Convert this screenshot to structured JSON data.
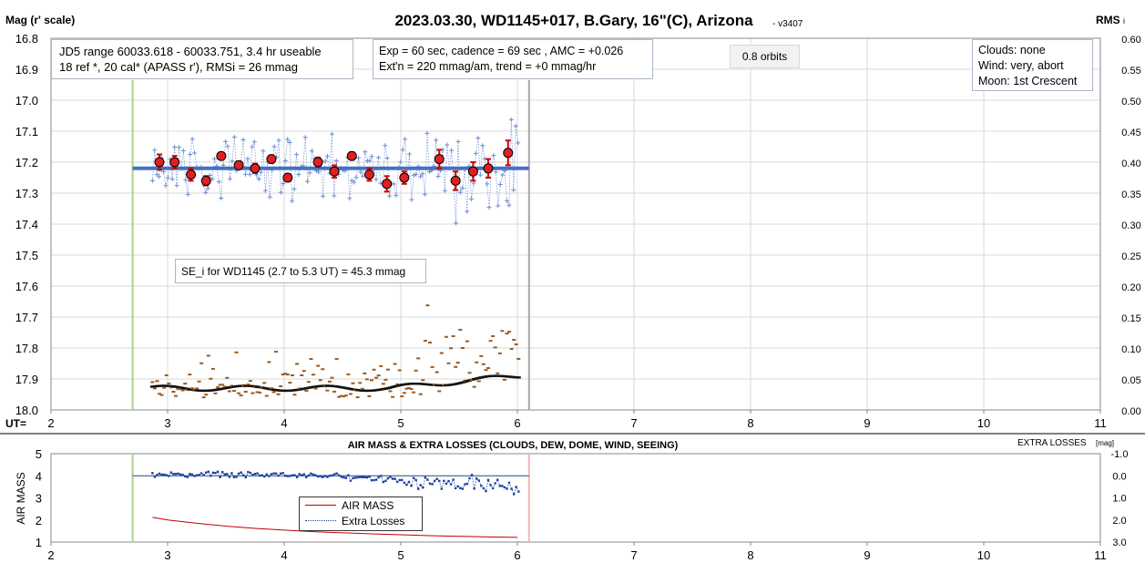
{
  "title": "2023.03.30, WD1145+017, B.Gary, 16\"(C), Arizona",
  "version": "- v3407",
  "ylabel_left": "Mag (r' scale)",
  "ylabel_right": "RMS",
  "ylabel_right_sub": "i",
  "ut_label": "UT=",
  "info_box_1": {
    "line1": "JD5 range 60033.618 - 60033.751, 3.4 hr useable",
    "line2": "18 ref *, 20 cal*  (APASS r'), RMSi = 26 mmag"
  },
  "info_box_2": {
    "line1": "Exp = 60 sec, cadence = 69 sec , AMC = +0.026",
    "line2": "Ext'n = 220 mmag/am, trend = +0 mmag/hr"
  },
  "orbits_label": "0.8 orbits",
  "conditions_box": {
    "line1": "Clouds: none",
    "line2": "Wind:    very, abort",
    "line3": "Moon:   1st Crescent"
  },
  "se_box": "SE_i for WD1145 (2.7 to 5.3 UT) = 45.3 mmag",
  "lower": {
    "title": "AIR MASS & EXTRA LOSSES (CLOUDS, DEW, DOME, WIND, SEEING)",
    "right_title": "EXTRA LOSSES",
    "right_title_unit": "[mag]",
    "ylabel": "AIR MASS",
    "legend_airmass": "AIR MASS",
    "legend_losses": "Extra Losses"
  },
  "colors": {
    "model_line": "#4472c4",
    "raw_points": "#6d8fd0",
    "binned": "#e02020",
    "start_marker": "#a9d18e",
    "end_marker": "#a6a6a6",
    "rms_brown": "#9c5a1f",
    "airmass": "#c00000",
    "losses": "#1f3fa0",
    "ref_line": "#1f4e79",
    "end_marker_lower": "#f4b6b6"
  },
  "chart_data": [
    {
      "type": "scatter",
      "panel": "light-curve",
      "xlim": [
        2,
        11
      ],
      "ylim_left": [
        16.8,
        18.0
      ],
      "ylim_left_reversed": true,
      "ylim_right": [
        0.0,
        0.6
      ],
      "x_ticks": [
        2,
        3,
        4,
        5,
        6,
        7,
        8,
        9,
        10,
        11
      ],
      "y_ticks_left": [
        "16.8",
        "16.9",
        "17.0",
        "17.1",
        "17.2",
        "17.3",
        "17.4",
        "17.5",
        "17.6",
        "17.7",
        "17.8",
        "17.9",
        "18.0"
      ],
      "y_ticks_right": [
        "0.60",
        "0.55",
        "0.50",
        "0.45",
        "0.40",
        "0.35",
        "0.30",
        "0.25",
        "0.20",
        "0.15",
        "0.10",
        "0.05",
        "0.00"
      ],
      "grid": true,
      "start_ut": 2.7,
      "end_ut": 6.1,
      "model_level": 17.22,
      "model_range": [
        2.7,
        6.1
      ],
      "binned": {
        "x": [
          2.93,
          3.06,
          3.2,
          3.33,
          3.46,
          3.61,
          3.75,
          3.89,
          4.03,
          4.29,
          4.43,
          4.58,
          4.73,
          4.88,
          5.03,
          5.33,
          5.47,
          5.62,
          5.75,
          5.92
        ],
        "y": [
          17.2,
          17.2,
          17.24,
          17.26,
          17.18,
          17.21,
          17.22,
          17.19,
          17.25,
          17.2,
          17.23,
          17.18,
          17.24,
          17.27,
          17.25,
          17.19,
          17.26,
          17.23,
          17.22,
          17.17
        ],
        "err": [
          0.025,
          0.02,
          0.02,
          0.015,
          0.01,
          0.012,
          0.015,
          0.012,
          0.012,
          0.015,
          0.02,
          0.012,
          0.02,
          0.025,
          0.02,
          0.03,
          0.03,
          0.03,
          0.03,
          0.04
        ]
      },
      "rms_range": [
        2.87,
        6.02
      ]
    },
    {
      "type": "line",
      "panel": "air-mass",
      "xlim": [
        2,
        11
      ],
      "ylim_left": [
        1,
        5
      ],
      "y_ticks_left": [
        "1",
        "2",
        "3",
        "4",
        "5"
      ],
      "y_ticks_right": [
        "-1.0",
        "0.0",
        "1.0",
        "2.0",
        "3.0"
      ],
      "x_ticks": [
        2,
        3,
        4,
        5,
        6,
        7,
        8,
        9,
        10,
        11
      ],
      "airmass": {
        "x": [
          2.87,
          3.0,
          3.25,
          3.5,
          3.75,
          4.0,
          4.25,
          4.5,
          4.75,
          5.0,
          5.25,
          5.5,
          5.75,
          6.0
        ],
        "y": [
          2.12,
          2.0,
          1.85,
          1.72,
          1.62,
          1.54,
          1.47,
          1.42,
          1.37,
          1.33,
          1.29,
          1.26,
          1.23,
          1.21
        ]
      },
      "losses_reference": 0.0,
      "losses_range": [
        2.87,
        6.02
      ]
    }
  ]
}
